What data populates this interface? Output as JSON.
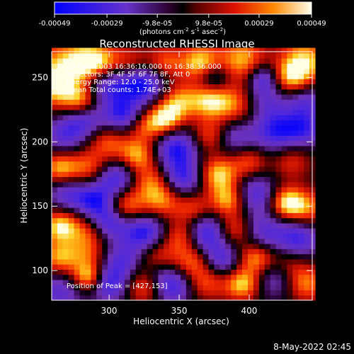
{
  "chart_data": {
    "type": "heatmap",
    "title": "Reconstructed RHESSI Image",
    "xlabel": "Heliocentric X (arcsec)",
    "ylabel": "Heliocentric Y (arcsec)",
    "xlim": [
      259,
      445
    ],
    "ylim": [
      77,
      270
    ],
    "xticks": [
      300,
      350,
      400
    ],
    "yticks": [
      100,
      150,
      200,
      250
    ],
    "colorbar": {
      "ticks": [
        "-0.00049",
        "-0.00029",
        "-9.8e-05",
        "9.8e-05",
        "0.00029",
        "0.00049"
      ],
      "tick_values": [
        -0.00049,
        -0.00029,
        -9.8e-05,
        9.8e-05,
        0.00029,
        0.00049
      ],
      "range": [
        -0.00049,
        0.00049
      ],
      "units_line1": "(photons cm",
      "units_sup1": "-2",
      "units_line2": " s",
      "units_sup2": "-1",
      "units_line3": " asec",
      "units_sup3": "-2",
      "units_line4": ")"
    },
    "annotations": [
      "23-Dec-2003 16:36:16.000 to 16:38:36.000",
      "Detectors: 3F 4F 5F 6F 7F 8F, Att 0",
      "Energy Range: 12.0 - 25.0 keV",
      "Clean     Total counts: 1.74E+03"
    ],
    "peak_text": "Position of Peak = [427,153]",
    "peak": [
      427,
      153
    ],
    "blobs": [
      [
        265,
        258,
        0.0004,
        14
      ],
      [
        285,
        262,
        0.00045,
        10
      ],
      [
        300,
        262,
        0.0003,
        10
      ],
      [
        318,
        262,
        0.0002,
        9
      ],
      [
        340,
        262,
        0.0003,
        9
      ],
      [
        365,
        262,
        0.00045,
        10
      ],
      [
        395,
        264,
        0.0004,
        12
      ],
      [
        440,
        264,
        0.0004,
        12
      ],
      [
        262,
        240,
        0.0003,
        10
      ],
      [
        280,
        232,
        0.00042,
        9
      ],
      [
        300,
        245,
        -0.0004,
        12
      ],
      [
        325,
        245,
        -0.00045,
        11
      ],
      [
        350,
        232,
        0.00035,
        10
      ],
      [
        372,
        232,
        0.0004,
        10
      ],
      [
        392,
        228,
        0.00035,
        12
      ],
      [
        410,
        232,
        -0.0003,
        11
      ],
      [
        430,
        250,
        0.0004,
        10
      ],
      [
        440,
        232,
        -0.0003,
        10
      ],
      [
        340,
        218,
        0.00045,
        9
      ],
      [
        325,
        212,
        0.0003,
        9
      ],
      [
        310,
        220,
        -0.0004,
        10
      ],
      [
        282,
        218,
        -0.00035,
        10
      ],
      [
        268,
        205,
        -0.0003,
        10
      ],
      [
        300,
        200,
        0.0003,
        10
      ],
      [
        320,
        190,
        0.00038,
        9
      ],
      [
        348,
        196,
        -0.00042,
        11
      ],
      [
        372,
        205,
        0.0003,
        9
      ],
      [
        390,
        205,
        -0.0003,
        11
      ],
      [
        420,
        208,
        -0.0004,
        12
      ],
      [
        440,
        210,
        -0.0003,
        10
      ],
      [
        265,
        180,
        0.0004,
        9
      ],
      [
        285,
        180,
        0.0003,
        10
      ],
      [
        305,
        172,
        -0.0004,
        10
      ],
      [
        330,
        170,
        0.0003,
        10
      ],
      [
        352,
        172,
        -0.0004,
        11
      ],
      [
        378,
        175,
        0.00045,
        10
      ],
      [
        400,
        185,
        0.0003,
        9
      ],
      [
        430,
        186,
        0.00025,
        10
      ],
      [
        270,
        160,
        -0.0003,
        10
      ],
      [
        290,
        155,
        -0.0004,
        10
      ],
      [
        312,
        150,
        0.0004,
        10
      ],
      [
        338,
        155,
        0.00035,
        10
      ],
      [
        360,
        148,
        0.0003,
        9
      ],
      [
        385,
        155,
        0.0004,
        9
      ],
      [
        405,
        160,
        -0.00035,
        11
      ],
      [
        427,
        153,
        0.00049,
        9
      ],
      [
        442,
        148,
        0.0003,
        10
      ],
      [
        265,
        135,
        0.00045,
        9
      ],
      [
        285,
        130,
        0.0003,
        10
      ],
      [
        300,
        138,
        -0.00042,
        10
      ],
      [
        325,
        130,
        -0.00045,
        11
      ],
      [
        352,
        127,
        0.00035,
        9
      ],
      [
        368,
        130,
        -0.00045,
        11
      ],
      [
        390,
        132,
        0.0003,
        9
      ],
      [
        410,
        130,
        -0.0003,
        11
      ],
      [
        435,
        125,
        -0.0004,
        11
      ],
      [
        265,
        110,
        0.0004,
        10
      ],
      [
        285,
        112,
        0.0002,
        9
      ],
      [
        310,
        108,
        -0.0003,
        10
      ],
      [
        335,
        110,
        0.0003,
        10
      ],
      [
        360,
        108,
        0.0003,
        9
      ],
      [
        380,
        108,
        -0.00035,
        10
      ],
      [
        405,
        110,
        0.0004,
        9
      ],
      [
        428,
        105,
        0.00025,
        10
      ],
      [
        265,
        85,
        -0.0003,
        12
      ],
      [
        285,
        95,
        0.00048,
        8
      ],
      [
        300,
        90,
        -0.0004,
        10
      ],
      [
        325,
        88,
        0.0003,
        10
      ],
      [
        345,
        88,
        -0.0004,
        10
      ],
      [
        370,
        92,
        0.0003,
        10
      ],
      [
        395,
        90,
        0.00045,
        9
      ],
      [
        420,
        95,
        -0.0003,
        11
      ],
      [
        440,
        90,
        0.00035,
        10
      ],
      [
        335,
        100,
        -0.0002,
        8
      ],
      [
        410,
        250,
        -0.00035,
        8
      ],
      [
        375,
        250,
        -0.0003,
        8
      ]
    ]
  },
  "footer": {
    "timestamp": "8-May-2022 02:45"
  },
  "colors": {
    "background": "#000000",
    "text": "#ffffff"
  }
}
